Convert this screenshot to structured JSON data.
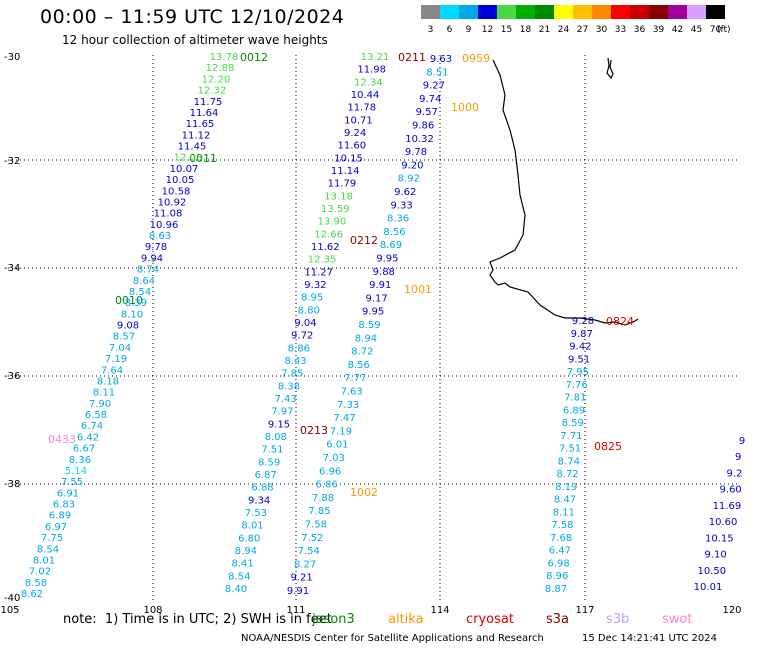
{
  "header": {
    "title": "00:00 – 11:59 UTC 12/10/2024",
    "subtitle": "12 hour collection of altimeter wave heights"
  },
  "legend": {
    "labels": [
      "3",
      "6",
      "9",
      "12",
      "15",
      "18",
      "21",
      "24",
      "27",
      "30",
      "33",
      "36",
      "39",
      "42",
      "45",
      "70"
    ],
    "unit": "(ft)",
    "colors": [
      "#888888",
      "#00d8ff",
      "#00a8e8",
      "#0000d8",
      "#48d848",
      "#00b000",
      "#008800",
      "#ffff00",
      "#ffc000",
      "#ff8800",
      "#ff0000",
      "#c80000",
      "#880000",
      "#a000a0",
      "#d8a0ff",
      "#000000"
    ]
  },
  "axes": {
    "lat_labels": [
      "-30",
      "-32",
      "-34",
      "-36",
      "-38",
      "-40"
    ],
    "lon_labels": [
      "105",
      "108",
      "111",
      "114",
      "117",
      "120"
    ]
  },
  "passes": [
    {
      "label": "0012",
      "color": "#008800"
    },
    {
      "label": "0011",
      "color": "#008800"
    },
    {
      "label": "0010",
      "color": "#008800"
    },
    {
      "label": "0433",
      "color": "#ff88c8"
    },
    {
      "label": "0211",
      "color": "#880000"
    },
    {
      "label": "0212",
      "color": "#880000"
    },
    {
      "label": "0213",
      "color": "#880000"
    },
    {
      "label": "0959",
      "color": "#ff9900"
    },
    {
      "label": "1000",
      "color": "#ff9900"
    },
    {
      "label": "1001",
      "color": "#ff9900"
    },
    {
      "label": "1002",
      "color": "#ff9900"
    },
    {
      "label": "0824",
      "color": "#dd0000"
    },
    {
      "label": "0825",
      "color": "#dd0000"
    }
  ],
  "tracks": [
    {
      "name": "track-0012-0010",
      "values": [
        {
          "v": "13.78",
          "c": "#48d848"
        },
        {
          "v": "12.88",
          "c": "#48d848"
        },
        {
          "v": "12.20",
          "c": "#48d848"
        },
        {
          "v": "12.32",
          "c": "#48d848"
        },
        {
          "v": "11.75",
          "c": "#0000d8"
        },
        {
          "v": "11.64",
          "c": "#0000d8"
        },
        {
          "v": "11.65",
          "c": "#0000d8"
        },
        {
          "v": "11.12",
          "c": "#0000d8"
        },
        {
          "v": "11.45",
          "c": "#0000d8"
        },
        {
          "v": "12.03",
          "c": "#48d848"
        },
        {
          "v": "10.07",
          "c": "#0000d8"
        },
        {
          "v": "10.05",
          "c": "#0000d8"
        },
        {
          "v": "10.58",
          "c": "#0000d8"
        },
        {
          "v": "10.92",
          "c": "#0000d8"
        },
        {
          "v": "11.08",
          "c": "#0000d8"
        },
        {
          "v": "10.96",
          "c": "#0000d8"
        },
        {
          "v": "8.63",
          "c": "#00a8e8"
        },
        {
          "v": "9.78",
          "c": "#0000d8"
        },
        {
          "v": "9.94",
          "c": "#0000d8"
        },
        {
          "v": "8.74",
          "c": "#00a8e8"
        },
        {
          "v": "8.64",
          "c": "#00a8e8"
        },
        {
          "v": "8.54",
          "c": "#00a8e8"
        },
        {
          "v": "8.39",
          "c": "#00a8e8"
        },
        {
          "v": "8.10",
          "c": "#00a8e8"
        },
        {
          "v": "9.08",
          "c": "#0000d8"
        },
        {
          "v": "8.57",
          "c": "#00a8e8"
        },
        {
          "v": "7.04",
          "c": "#00a8e8"
        },
        {
          "v": "7.19",
          "c": "#00a8e8"
        },
        {
          "v": "7.64",
          "c": "#00a8e8"
        },
        {
          "v": "8.18",
          "c": "#00a8e8"
        },
        {
          "v": "8.11",
          "c": "#00a8e8"
        },
        {
          "v": "7.90",
          "c": "#00a8e8"
        },
        {
          "v": "6.58",
          "c": "#00a8e8"
        },
        {
          "v": "6.74",
          "c": "#00a8e8"
        },
        {
          "v": "6.42",
          "c": "#00a8e8"
        },
        {
          "v": "6.67",
          "c": "#00a8e8"
        },
        {
          "v": "8.36",
          "c": "#00a8e8"
        },
        {
          "v": "5.14",
          "c": "#00d8ff"
        },
        {
          "v": "7.55",
          "c": "#00a8e8"
        },
        {
          "v": "6.91",
          "c": "#00a8e8"
        },
        {
          "v": "6.83",
          "c": "#00a8e8"
        },
        {
          "v": "6.89",
          "c": "#00a8e8"
        },
        {
          "v": "6.97",
          "c": "#00a8e8"
        },
        {
          "v": "7.75",
          "c": "#00a8e8"
        },
        {
          "v": "8.54",
          "c": "#00a8e8"
        },
        {
          "v": "8.01",
          "c": "#00a8e8"
        },
        {
          "v": "7.02",
          "c": "#00a8e8"
        },
        {
          "v": "8.58",
          "c": "#00a8e8"
        },
        {
          "v": "8.62",
          "c": "#00a8e8"
        }
      ]
    },
    {
      "name": "track-0211-0213",
      "values": [
        {
          "v": "13.21",
          "c": "#48d848"
        },
        {
          "v": "11.98",
          "c": "#0000d8"
        },
        {
          "v": "12.34",
          "c": "#48d848"
        },
        {
          "v": "10.44",
          "c": "#0000d8"
        },
        {
          "v": "11.78",
          "c": "#0000d8"
        },
        {
          "v": "10.71",
          "c": "#0000d8"
        },
        {
          "v": "9.24",
          "c": "#0000d8"
        },
        {
          "v": "11.60",
          "c": "#0000d8"
        },
        {
          "v": "10.15",
          "c": "#0000d8"
        },
        {
          "v": "11.14",
          "c": "#0000d8"
        },
        {
          "v": "11.79",
          "c": "#0000d8"
        },
        {
          "v": "13.18",
          "c": "#48d848"
        },
        {
          "v": "13.59",
          "c": "#48d848"
        },
        {
          "v": "13.90",
          "c": "#48d848"
        },
        {
          "v": "12.66",
          "c": "#48d848"
        },
        {
          "v": "11.62",
          "c": "#0000d8"
        },
        {
          "v": "12.35",
          "c": "#48d848"
        },
        {
          "v": "11.27",
          "c": "#0000d8"
        },
        {
          "v": "9.32",
          "c": "#0000d8"
        },
        {
          "v": "8.95",
          "c": "#00a8e8"
        },
        {
          "v": "8.80",
          "c": "#00a8e8"
        },
        {
          "v": "9.04",
          "c": "#0000d8"
        },
        {
          "v": "9.72",
          "c": "#0000d8"
        },
        {
          "v": "8.86",
          "c": "#00a8e8"
        },
        {
          "v": "8.43",
          "c": "#00a8e8"
        },
        {
          "v": "7.85",
          "c": "#00a8e8"
        },
        {
          "v": "8.38",
          "c": "#00a8e8"
        },
        {
          "v": "7.43",
          "c": "#00a8e8"
        },
        {
          "v": "7.97",
          "c": "#00a8e8"
        },
        {
          "v": "9.15",
          "c": "#0000d8"
        },
        {
          "v": "8.08",
          "c": "#00a8e8"
        },
        {
          "v": "7.51",
          "c": "#00a8e8"
        },
        {
          "v": "8.59",
          "c": "#00a8e8"
        },
        {
          "v": "6.87",
          "c": "#00a8e8"
        },
        {
          "v": "6.88",
          "c": "#00a8e8"
        },
        {
          "v": "9.34",
          "c": "#0000d8"
        },
        {
          "v": "7.53",
          "c": "#00a8e8"
        },
        {
          "v": "8.01",
          "c": "#00a8e8"
        },
        {
          "v": "6.80",
          "c": "#00a8e8"
        },
        {
          "v": "8.94",
          "c": "#00a8e8"
        },
        {
          "v": "8.41",
          "c": "#00a8e8"
        },
        {
          "v": "8.54",
          "c": "#00a8e8"
        },
        {
          "v": "8.40",
          "c": "#00a8e8"
        }
      ]
    },
    {
      "name": "track-0959-1002",
      "values": [
        {
          "v": "9.63",
          "c": "#0000d8"
        },
        {
          "v": "8.51",
          "c": "#00a8e8"
        },
        {
          "v": "9.27",
          "c": "#0000d8"
        },
        {
          "v": "9.74",
          "c": "#0000d8"
        },
        {
          "v": "9.57",
          "c": "#0000d8"
        },
        {
          "v": "9.86",
          "c": "#0000d8"
        },
        {
          "v": "10.32",
          "c": "#0000d8"
        },
        {
          "v": "9.78",
          "c": "#0000d8"
        },
        {
          "v": "9.20",
          "c": "#0000d8"
        },
        {
          "v": "8.92",
          "c": "#00a8e8"
        },
        {
          "v": "9.62",
          "c": "#0000d8"
        },
        {
          "v": "9.33",
          "c": "#0000d8"
        },
        {
          "v": "8.36",
          "c": "#00a8e8"
        },
        {
          "v": "8.56",
          "c": "#00a8e8"
        },
        {
          "v": "8.69",
          "c": "#00a8e8"
        },
        {
          "v": "9.95",
          "c": "#0000d8"
        },
        {
          "v": "9.88",
          "c": "#0000d8"
        },
        {
          "v": "9.91",
          "c": "#0000d8"
        },
        {
          "v": "9.17",
          "c": "#0000d8"
        },
        {
          "v": "9.95",
          "c": "#0000d8"
        },
        {
          "v": "8.59",
          "c": "#00a8e8"
        },
        {
          "v": "8.94",
          "c": "#00a8e8"
        },
        {
          "v": "8.72",
          "c": "#00a8e8"
        },
        {
          "v": "8.56",
          "c": "#00a8e8"
        },
        {
          "v": "7.77",
          "c": "#00a8e8"
        },
        {
          "v": "7.63",
          "c": "#00a8e8"
        },
        {
          "v": "7.33",
          "c": "#00a8e8"
        },
        {
          "v": "7.47",
          "c": "#00a8e8"
        },
        {
          "v": "7.19",
          "c": "#00a8e8"
        },
        {
          "v": "6.01",
          "c": "#00a8e8"
        },
        {
          "v": "7.03",
          "c": "#00a8e8"
        },
        {
          "v": "6.96",
          "c": "#00a8e8"
        },
        {
          "v": "6.86",
          "c": "#00a8e8"
        },
        {
          "v": "7.88",
          "c": "#00a8e8"
        },
        {
          "v": "7.85",
          "c": "#00a8e8"
        },
        {
          "v": "7.58",
          "c": "#00a8e8"
        },
        {
          "v": "7.52",
          "c": "#00a8e8"
        },
        {
          "v": "7.54",
          "c": "#00a8e8"
        },
        {
          "v": "8.27",
          "c": "#00a8e8"
        },
        {
          "v": "9.21",
          "c": "#0000d8"
        },
        {
          "v": "9.91",
          "c": "#0000d8"
        }
      ]
    },
    {
      "name": "track-0824-0825",
      "values": [
        {
          "v": "9.28",
          "c": "#0000d8"
        },
        {
          "v": "9.87",
          "c": "#0000d8"
        },
        {
          "v": "9.42",
          "c": "#0000d8"
        },
        {
          "v": "9.51",
          "c": "#0000d8"
        },
        {
          "v": "7.95",
          "c": "#00a8e8"
        },
        {
          "v": "7.76",
          "c": "#00a8e8"
        },
        {
          "v": "7.81",
          "c": "#00a8e8"
        },
        {
          "v": "6.89",
          "c": "#00a8e8"
        },
        {
          "v": "8.59",
          "c": "#00a8e8"
        },
        {
          "v": "7.71",
          "c": "#00a8e8"
        },
        {
          "v": "7.51",
          "c": "#00a8e8"
        },
        {
          "v": "8.74",
          "c": "#00a8e8"
        },
        {
          "v": "8.72",
          "c": "#00a8e8"
        },
        {
          "v": "8.19",
          "c": "#00a8e8"
        },
        {
          "v": "8.47",
          "c": "#00a8e8"
        },
        {
          "v": "8.11",
          "c": "#00a8e8"
        },
        {
          "v": "7.58",
          "c": "#00a8e8"
        },
        {
          "v": "7.68",
          "c": "#00a8e8"
        },
        {
          "v": "6.47",
          "c": "#00a8e8"
        },
        {
          "v": "6.98",
          "c": "#00a8e8"
        },
        {
          "v": "8.96",
          "c": "#00a8e8"
        },
        {
          "v": "8.87",
          "c": "#00a8e8"
        }
      ]
    },
    {
      "name": "track-east-edge",
      "values": [
        {
          "v": "9",
          "c": "#0000d8"
        },
        {
          "v": "9",
          "c": "#0000d8"
        },
        {
          "v": "9.2",
          "c": "#0000d8"
        },
        {
          "v": "9.60",
          "c": "#0000d8"
        },
        {
          "v": "11.69",
          "c": "#0000d8"
        },
        {
          "v": "10.60",
          "c": "#0000d8"
        },
        {
          "v": "10.15",
          "c": "#0000d8"
        },
        {
          "v": "9.10",
          "c": "#0000d8"
        },
        {
          "v": "10.50",
          "c": "#0000d8"
        },
        {
          "v": "10.01",
          "c": "#0000d8"
        }
      ]
    }
  ],
  "footer": {
    "note": "note:  1) Time is in UTC; 2) SWH is in feet",
    "satellites": [
      {
        "name": "jason3",
        "color": "#008800"
      },
      {
        "name": "altika",
        "color": "#ff9900"
      },
      {
        "name": "cryosat",
        "color": "#dd0000"
      },
      {
        "name": "s3a",
        "color": "#880000"
      },
      {
        "name": "s3b",
        "color": "#c0a0ff"
      },
      {
        "name": "swot",
        "color": "#ff88c8"
      }
    ],
    "credit": "NOAA/NESDIS Center for Satellite Applications and Research",
    "timestamp": "15 Dec 14:21:41 UTC 2024"
  }
}
